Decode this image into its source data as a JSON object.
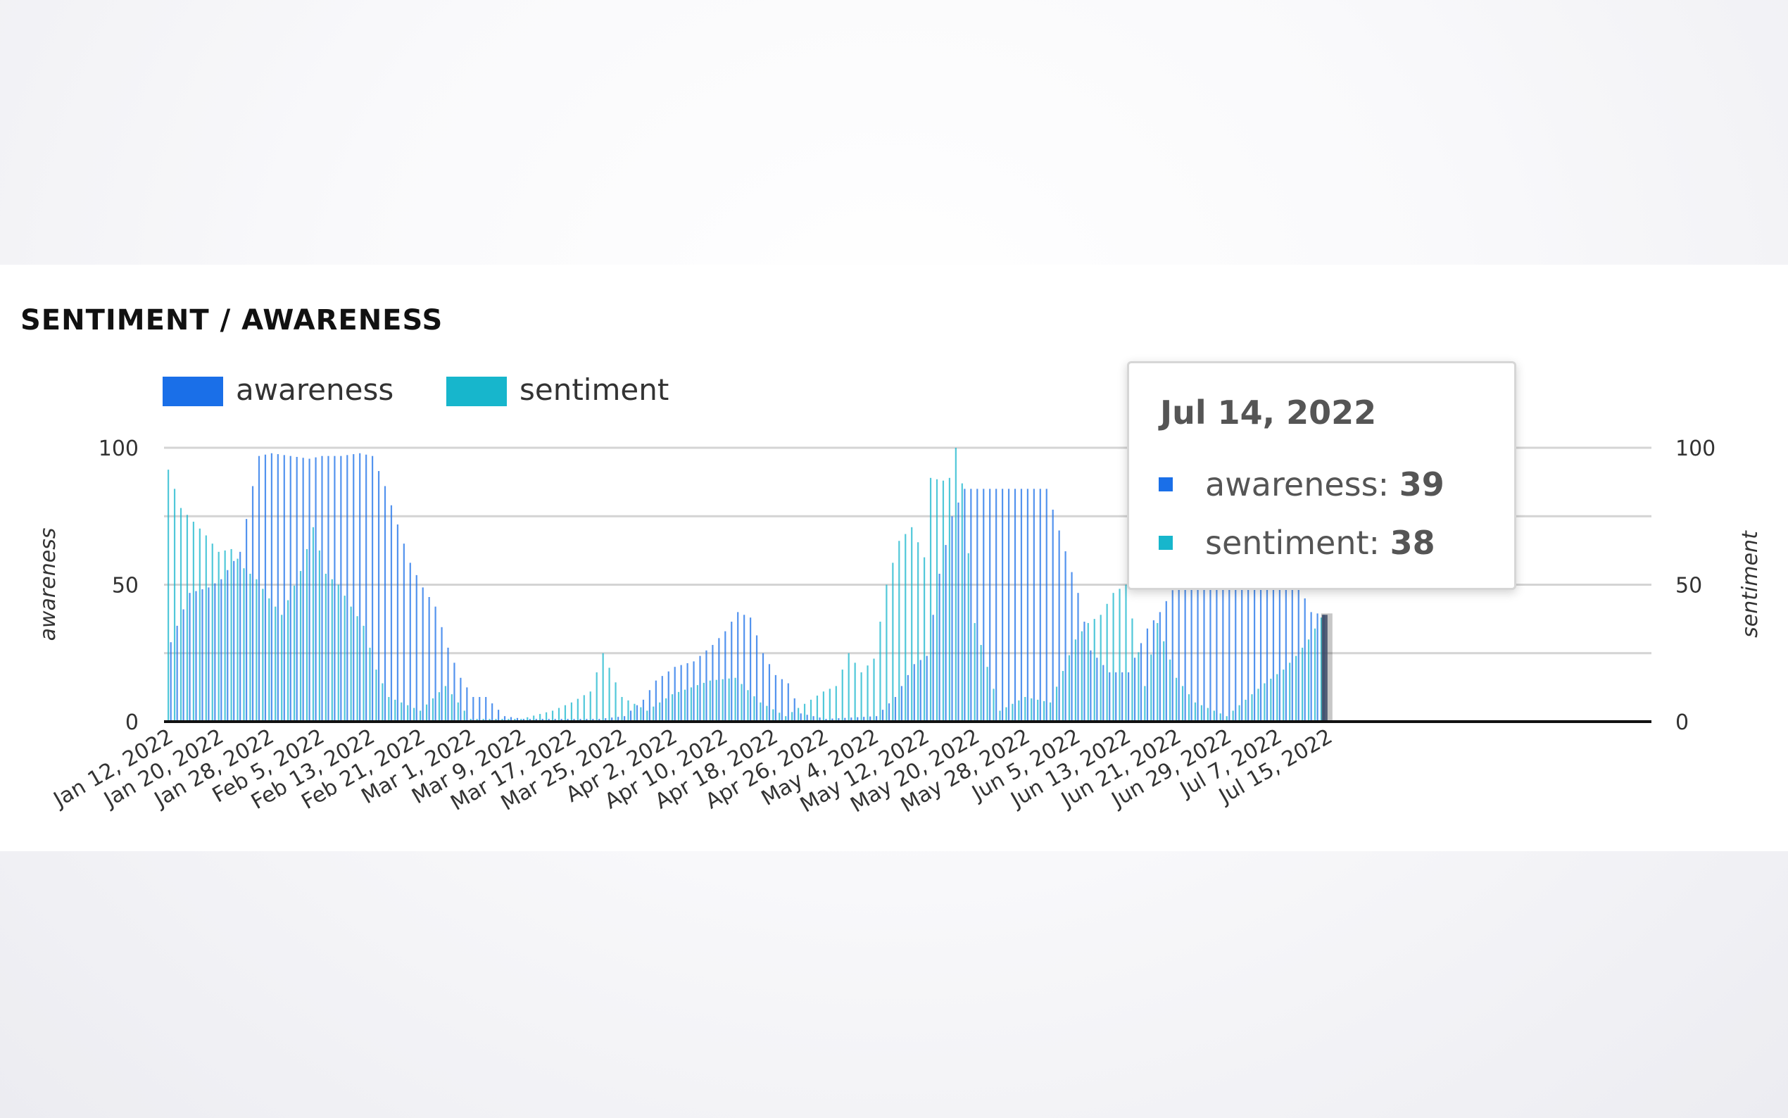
{
  "title": "SENTIMENT / AWARENESS",
  "colors": {
    "awareness": "#1a6fe8",
    "sentiment": "#17b6cc",
    "grid": "#d4d4d4",
    "axis": "#111111",
    "text": "#333333"
  },
  "tooltip": {
    "date": "Jul 14, 2022",
    "rows": [
      {
        "label": "awareness:",
        "value": "39",
        "icon": "square-marker-icon"
      },
      {
        "label": "sentiment:",
        "value": "38",
        "icon": "square-marker-icon"
      }
    ]
  },
  "chart_data": {
    "type": "bar",
    "title": "SENTIMENT / AWARENESS",
    "legend": {
      "position": "top-left",
      "entries": [
        "awareness",
        "sentiment"
      ]
    },
    "grid": true,
    "xlabel": "",
    "ylabel": "awareness",
    "y2label": "sentiment",
    "ylim": [
      0,
      100
    ],
    "y2lim": [
      0,
      100
    ],
    "yticks": [
      0,
      50,
      100
    ],
    "y2ticks": [
      0,
      50,
      100
    ],
    "x_tick_labels": [
      "Jan 12, 2022",
      "Jan 20, 2022",
      "Jan 28, 2022",
      "Feb 5, 2022",
      "Feb 13, 2022",
      "Feb 21, 2022",
      "Mar 1, 2022",
      "Mar 9, 2022",
      "Mar 17, 2022",
      "Mar 25, 2022",
      "Apr 2, 2022",
      "Apr 10, 2022",
      "Apr 18, 2022",
      "Apr 26, 2022",
      "May 4, 2022",
      "May 12, 2022",
      "May 20, 2022",
      "May 28, 2022",
      "Jun 5, 2022",
      "Jun 13, 2022",
      "Jun 21, 2022",
      "Jun 29, 2022",
      "Jul 7, 2022",
      "Jul 15, 2022"
    ],
    "highlighted": {
      "date": "Jul 14, 2022",
      "awareness": 39,
      "sentiment": 38
    },
    "series": [
      {
        "name": "awareness",
        "axis": "left",
        "points": [
          [
            "Jan 12, 2022",
            29
          ],
          [
            "Jan 15, 2022",
            47
          ],
          [
            "Jan 18, 2022",
            49
          ],
          [
            "Jan 20, 2022",
            52
          ],
          [
            "Jan 23, 2022",
            62
          ],
          [
            "Jan 25, 2022",
            86
          ],
          [
            "Jan 26, 2022",
            97
          ],
          [
            "Jan 28, 2022",
            98
          ],
          [
            "Jan 31, 2022",
            97
          ],
          [
            "Feb 3, 2022",
            96
          ],
          [
            "Feb 5, 2022",
            97
          ],
          [
            "Feb 8, 2022",
            97
          ],
          [
            "Feb 11, 2022",
            98
          ],
          [
            "Feb 13, 2022",
            97
          ],
          [
            "Feb 15, 2022",
            86
          ],
          [
            "Feb 17, 2022",
            72
          ],
          [
            "Feb 19, 2022",
            58
          ],
          [
            "Feb 21, 2022",
            49
          ],
          [
            "Feb 23, 2022",
            42
          ],
          [
            "Feb 25, 2022",
            27
          ],
          [
            "Feb 27, 2022",
            16
          ],
          [
            "Mar 1, 2022",
            9
          ],
          [
            "Mar 3, 2022",
            9
          ],
          [
            "Mar 6, 2022",
            2
          ],
          [
            "Mar 9, 2022",
            1
          ],
          [
            "Mar 13, 2022",
            1
          ],
          [
            "Mar 17, 2022",
            1
          ],
          [
            "Mar 21, 2022",
            1
          ],
          [
            "Mar 25, 2022",
            2
          ],
          [
            "Mar 28, 2022",
            8
          ],
          [
            "Mar 30, 2022",
            15
          ],
          [
            "Apr 2, 2022",
            20
          ],
          [
            "Apr 5, 2022",
            22
          ],
          [
            "Apr 8, 2022",
            28
          ],
          [
            "Apr 10, 2022",
            33
          ],
          [
            "Apr 12, 2022",
            40
          ],
          [
            "Apr 14, 2022",
            38
          ],
          [
            "Apr 16, 2022",
            25
          ],
          [
            "Apr 18, 2022",
            17
          ],
          [
            "Apr 20, 2022",
            14
          ],
          [
            "Apr 22, 2022",
            3
          ],
          [
            "Apr 26, 2022",
            1
          ],
          [
            "May 4, 2022",
            2
          ],
          [
            "May 7, 2022",
            9
          ],
          [
            "May 10, 2022",
            21
          ],
          [
            "May 12, 2022",
            24
          ],
          [
            "May 14, 2022",
            54
          ],
          [
            "May 16, 2022",
            75
          ],
          [
            "May 18, 2022",
            85
          ],
          [
            "May 20, 2022",
            85
          ],
          [
            "May 24, 2022",
            85
          ],
          [
            "May 28, 2022",
            85
          ],
          [
            "May 31, 2022",
            85
          ],
          [
            "Jun 5, 2022",
            47
          ],
          [
            "Jun 7, 2022",
            26
          ],
          [
            "Jun 10, 2022",
            18
          ],
          [
            "Jun 13, 2022",
            18
          ],
          [
            "Jun 16, 2022",
            34
          ],
          [
            "Jun 18, 2022",
            40
          ],
          [
            "Jun 21, 2022",
            52
          ],
          [
            "Jun 24, 2022",
            52
          ],
          [
            "Jun 29, 2022",
            52
          ],
          [
            "Jul 4, 2022",
            74
          ],
          [
            "Jul 6, 2022",
            66
          ],
          [
            "Jul 8, 2022",
            58
          ],
          [
            "Jul 10, 2022",
            50
          ],
          [
            "Jul 12, 2022",
            40
          ],
          [
            "Jul 14, 2022",
            39
          ]
        ]
      },
      {
        "name": "sentiment",
        "axis": "right",
        "points": [
          [
            "Jan 12, 2022",
            92
          ],
          [
            "Jan 14, 2022",
            78
          ],
          [
            "Jan 16, 2022",
            73
          ],
          [
            "Jan 18, 2022",
            68
          ],
          [
            "Jan 20, 2022",
            62
          ],
          [
            "Jan 22, 2022",
            63
          ],
          [
            "Jan 24, 2022",
            56
          ],
          [
            "Jan 26, 2022",
            52
          ],
          [
            "Jan 28, 2022",
            45
          ],
          [
            "Jan 30, 2022",
            39
          ],
          [
            "Feb 2, 2022",
            55
          ],
          [
            "Feb 4, 2022",
            71
          ],
          [
            "Feb 6, 2022",
            54
          ],
          [
            "Feb 8, 2022",
            50
          ],
          [
            "Feb 10, 2022",
            42
          ],
          [
            "Feb 12, 2022",
            35
          ],
          [
            "Feb 14, 2022",
            19
          ],
          [
            "Feb 16, 2022",
            9
          ],
          [
            "Feb 21, 2022",
            4
          ],
          [
            "Feb 25, 2022",
            13
          ],
          [
            "Mar 1, 2022",
            1
          ],
          [
            "Mar 9, 2022",
            1
          ],
          [
            "Mar 14, 2022",
            4
          ],
          [
            "Mar 17, 2022",
            7
          ],
          [
            "Mar 20, 2022",
            11
          ],
          [
            "Mar 22, 2022",
            25
          ],
          [
            "Mar 25, 2022",
            9
          ],
          [
            "Mar 29, 2022",
            4
          ],
          [
            "Apr 2, 2022",
            10
          ],
          [
            "Apr 8, 2022",
            15
          ],
          [
            "Apr 12, 2022",
            16
          ],
          [
            "Apr 16, 2022",
            7
          ],
          [
            "Apr 20, 2022",
            2
          ],
          [
            "Apr 26, 2022",
            11
          ],
          [
            "Apr 28, 2022",
            13
          ],
          [
            "Apr 30, 2022",
            25
          ],
          [
            "May 2, 2022",
            18
          ],
          [
            "May 4, 2022",
            23
          ],
          [
            "May 6, 2022",
            50
          ],
          [
            "May 8, 2022",
            66
          ],
          [
            "May 10, 2022",
            71
          ],
          [
            "May 12, 2022",
            60
          ],
          [
            "May 13, 2022",
            89
          ],
          [
            "May 15, 2022",
            88
          ],
          [
            "May 16, 2022",
            89
          ],
          [
            "May 17, 2022",
            100
          ],
          [
            "May 18, 2022",
            87
          ],
          [
            "May 20, 2022",
            36
          ],
          [
            "May 24, 2022",
            4
          ],
          [
            "May 28, 2022",
            9
          ],
          [
            "Jun 1, 2022",
            7
          ],
          [
            "Jun 5, 2022",
            30
          ],
          [
            "Jun 7, 2022",
            36
          ],
          [
            "Jun 9, 2022",
            39
          ],
          [
            "Jun 11, 2022",
            47
          ],
          [
            "Jun 13, 2022",
            50
          ],
          [
            "Jun 16, 2022",
            13
          ],
          [
            "Jun 18, 2022",
            36
          ],
          [
            "Jun 21, 2022",
            16
          ],
          [
            "Jun 24, 2022",
            7
          ],
          [
            "Jun 29, 2022",
            2
          ],
          [
            "Jul 5, 2022",
            14
          ],
          [
            "Jul 8, 2022",
            19
          ],
          [
            "Jul 10, 2022",
            24
          ],
          [
            "Jul 12, 2022",
            30
          ],
          [
            "Jul 14, 2022",
            38
          ]
        ]
      }
    ]
  }
}
